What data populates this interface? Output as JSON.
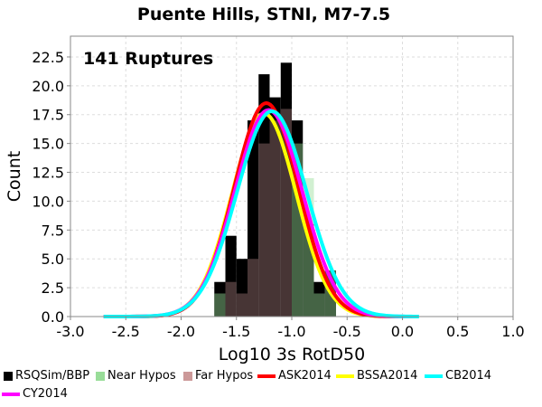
{
  "chart_data": {
    "type": "bar",
    "title": "Puente Hills, STNI, M7-7.5",
    "annotation": "141 Ruptures",
    "xlabel": "Log10 3s RotD50",
    "ylabel": "Count",
    "xlim": [
      -3.0,
      1.0
    ],
    "ylim": [
      0,
      24.3
    ],
    "xticks": [
      "-3.0",
      "-2.5",
      "-2.0",
      "-1.5",
      "-1.0",
      "-0.5",
      "0.0",
      "0.5",
      "1.0"
    ],
    "xtick_values": [
      -3.0,
      -2.5,
      -2.0,
      -1.5,
      -1.0,
      -0.5,
      0.0,
      0.5,
      1.0
    ],
    "yticks": [
      "0.0",
      "2.5",
      "5.0",
      "7.5",
      "10.0",
      "12.5",
      "15.0",
      "17.5",
      "20.0",
      "22.5"
    ],
    "ytick_values": [
      0,
      2.5,
      5,
      7.5,
      10,
      12.5,
      15,
      17.5,
      20,
      22.5
    ],
    "grid": true,
    "legend_position": "bottom",
    "bin_edges": [
      -1.7,
      -1.6,
      -1.5,
      -1.4,
      -1.3,
      -1.2,
      -1.1,
      -1.0,
      -0.9,
      -0.8,
      -0.7,
      -0.6,
      -0.5
    ],
    "series": [
      {
        "name": "RSQSim/BBP",
        "color": "#000000",
        "values": [
          3,
          7,
          5,
          17,
          21,
          19,
          22,
          17,
          8,
          3,
          4,
          0
        ]
      },
      {
        "name": "Near Hypos",
        "color": "#99dd99",
        "values": [
          2,
          0,
          0,
          0,
          0,
          0,
          0,
          15,
          12,
          2,
          4,
          0
        ]
      },
      {
        "name": "Far Hypos",
        "color": "#cc9999",
        "values": [
          0,
          3,
          2,
          5,
          15,
          17,
          18,
          0,
          0,
          0,
          0,
          0
        ]
      },
      {
        "name": "ASK2014",
        "color": "#ff0000",
        "type": "normal",
        "mean": -1.23,
        "peak": 18.5,
        "sigma": 0.29,
        "range": [
          -2.7,
          0.1
        ]
      },
      {
        "name": "BSSA2014",
        "color": "#ffff00",
        "type": "normal",
        "mean": -1.25,
        "peak": 17.6,
        "sigma": 0.29,
        "range": [
          -2.7,
          0.1
        ]
      },
      {
        "name": "CB2014",
        "color": "#00ffff",
        "type": "normal",
        "mean": -1.18,
        "peak": 17.8,
        "sigma": 0.315,
        "range": [
          -2.7,
          0.15
        ]
      },
      {
        "name": "CY2014",
        "color": "#ff00ff",
        "type": "normal",
        "mean": -1.21,
        "peak": 17.9,
        "sigma": 0.305,
        "range": [
          -2.7,
          0.1
        ]
      }
    ]
  }
}
